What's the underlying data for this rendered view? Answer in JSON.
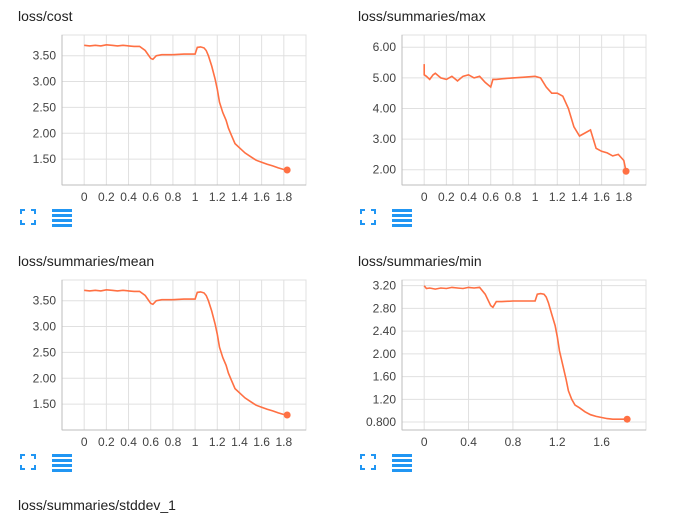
{
  "theme": {
    "line_color": "#ff7043",
    "smooth_line_color": "#ffb8a1",
    "grid_color": "#e0e0e0",
    "axis_color": "#bdbdbd",
    "icon_color": "#2196f3"
  },
  "cards": [
    {
      "title": "loss/cost",
      "fullscreen_icon": "fullscreen-icon",
      "data_icon": "list-icon"
    },
    {
      "title": "loss/summaries/max",
      "fullscreen_icon": "fullscreen-icon",
      "data_icon": "list-icon"
    },
    {
      "title": "loss/summaries/mean",
      "fullscreen_icon": "fullscreen-icon",
      "data_icon": "list-icon"
    },
    {
      "title": "loss/summaries/min",
      "fullscreen_icon": "fullscreen-icon",
      "data_icon": "list-icon"
    }
  ],
  "next_card_title": "loss/summaries/stddev_1",
  "chart_data": [
    {
      "type": "line",
      "title": "loss/cost",
      "xlabel": "",
      "ylabel": "",
      "xlim": [
        -0.2,
        2.0
      ],
      "ylim": [
        1.0,
        3.9
      ],
      "xticks": [
        0,
        0.2,
        0.4,
        0.6,
        0.8,
        1,
        1.2,
        1.4,
        1.6,
        1.8
      ],
      "xtick_labels": [
        "0",
        "0.2",
        "0.4",
        "0.6",
        "0.8",
        "1",
        "1.2",
        "1.4",
        "1.6",
        "1.8"
      ],
      "yticks": [
        1.5,
        2.0,
        2.5,
        3.0,
        3.5
      ],
      "ytick_labels": [
        "1.50",
        "2.00",
        "2.50",
        "3.00",
        "3.50"
      ],
      "grid": true,
      "series": [
        {
          "x": [
            0,
            0.05,
            0.1,
            0.15,
            0.2,
            0.25,
            0.3,
            0.35,
            0.4,
            0.45,
            0.5,
            0.55,
            0.6,
            0.62,
            0.65,
            0.7,
            0.8,
            0.9,
            1.0,
            1.02,
            1.05,
            1.08,
            1.1,
            1.12,
            1.15,
            1.18,
            1.2,
            1.22,
            1.25,
            1.28,
            1.3,
            1.33,
            1.36,
            1.4,
            1.45,
            1.5,
            1.55,
            1.6,
            1.65,
            1.7,
            1.75,
            1.8,
            1.83
          ],
          "y": [
            3.7,
            3.69,
            3.7,
            3.69,
            3.71,
            3.7,
            3.69,
            3.7,
            3.69,
            3.68,
            3.68,
            3.6,
            3.45,
            3.43,
            3.5,
            3.52,
            3.52,
            3.53,
            3.53,
            3.66,
            3.67,
            3.65,
            3.6,
            3.5,
            3.3,
            3.05,
            2.85,
            2.6,
            2.4,
            2.25,
            2.1,
            1.95,
            1.8,
            1.72,
            1.62,
            1.55,
            1.48,
            1.44,
            1.4,
            1.37,
            1.33,
            1.3,
            1.29
          ]
        }
      ]
    },
    {
      "type": "line",
      "title": "loss/summaries/max",
      "xlabel": "",
      "ylabel": "",
      "xlim": [
        -0.2,
        2.0
      ],
      "ylim": [
        1.5,
        6.4
      ],
      "xticks": [
        0,
        0.2,
        0.4,
        0.6,
        0.8,
        1,
        1.2,
        1.4,
        1.6,
        1.8
      ],
      "xtick_labels": [
        "0",
        "0.2",
        "0.4",
        "0.6",
        "0.8",
        "1",
        "1.2",
        "1.4",
        "1.6",
        "1.8"
      ],
      "yticks": [
        2.0,
        3.0,
        4.0,
        5.0,
        6.0
      ],
      "ytick_labels": [
        "2.00",
        "3.00",
        "4.00",
        "5.00",
        "6.00"
      ],
      "grid": true,
      "series": [
        {
          "x": [
            0,
            0.0,
            0.02,
            0.05,
            0.08,
            0.1,
            0.15,
            0.2,
            0.25,
            0.3,
            0.35,
            0.4,
            0.45,
            0.5,
            0.55,
            0.6,
            0.62,
            0.65,
            0.7,
            0.8,
            0.9,
            1.0,
            1.05,
            1.1,
            1.15,
            1.2,
            1.25,
            1.3,
            1.35,
            1.4,
            1.45,
            1.5,
            1.55,
            1.6,
            1.65,
            1.7,
            1.75,
            1.8,
            1.82
          ],
          "y": [
            5.45,
            5.1,
            5.05,
            4.95,
            5.1,
            5.15,
            5.0,
            4.95,
            5.05,
            4.9,
            5.05,
            5.1,
            5.0,
            5.05,
            4.85,
            4.7,
            4.95,
            4.95,
            4.97,
            5.0,
            5.02,
            5.05,
            5.0,
            4.7,
            4.5,
            4.5,
            4.4,
            4.0,
            3.4,
            3.1,
            3.2,
            3.3,
            2.7,
            2.6,
            2.55,
            2.45,
            2.5,
            2.3,
            1.95
          ]
        }
      ]
    },
    {
      "type": "line",
      "title": "loss/summaries/mean",
      "xlabel": "",
      "ylabel": "",
      "xlim": [
        -0.2,
        2.0
      ],
      "ylim": [
        1.0,
        3.9
      ],
      "xticks": [
        0,
        0.2,
        0.4,
        0.6,
        0.8,
        1,
        1.2,
        1.4,
        1.6,
        1.8
      ],
      "xtick_labels": [
        "0",
        "0.2",
        "0.4",
        "0.6",
        "0.8",
        "1",
        "1.2",
        "1.4",
        "1.6",
        "1.8"
      ],
      "yticks": [
        1.5,
        2.0,
        2.5,
        3.0,
        3.5
      ],
      "ytick_labels": [
        "1.50",
        "2.00",
        "2.50",
        "3.00",
        "3.50"
      ],
      "grid": true,
      "series": [
        {
          "x": [
            0,
            0.05,
            0.1,
            0.15,
            0.2,
            0.25,
            0.3,
            0.35,
            0.4,
            0.45,
            0.5,
            0.55,
            0.6,
            0.62,
            0.65,
            0.7,
            0.8,
            0.9,
            1.0,
            1.02,
            1.05,
            1.08,
            1.1,
            1.12,
            1.15,
            1.18,
            1.2,
            1.22,
            1.25,
            1.28,
            1.3,
            1.33,
            1.36,
            1.4,
            1.45,
            1.5,
            1.55,
            1.6,
            1.65,
            1.7,
            1.75,
            1.8,
            1.83
          ],
          "y": [
            3.7,
            3.69,
            3.7,
            3.69,
            3.71,
            3.7,
            3.69,
            3.7,
            3.69,
            3.68,
            3.68,
            3.6,
            3.45,
            3.43,
            3.5,
            3.52,
            3.52,
            3.53,
            3.53,
            3.66,
            3.67,
            3.65,
            3.6,
            3.5,
            3.3,
            3.05,
            2.85,
            2.6,
            2.4,
            2.25,
            2.1,
            1.95,
            1.8,
            1.72,
            1.62,
            1.55,
            1.48,
            1.44,
            1.4,
            1.37,
            1.33,
            1.3,
            1.29
          ]
        }
      ]
    },
    {
      "type": "line",
      "title": "loss/summaries/min",
      "xlabel": "",
      "ylabel": "",
      "xlim": [
        -0.2,
        2.0
      ],
      "ylim": [
        0.66,
        3.3
      ],
      "xticks": [
        0,
        0.4,
        0.8,
        1.2,
        1.6
      ],
      "xtick_labels": [
        "0",
        "0.4",
        "0.8",
        "1.2",
        "1.6"
      ],
      "yticks": [
        0.8,
        1.2,
        1.6,
        2.0,
        2.4,
        2.8,
        3.2
      ],
      "ytick_labels": [
        "0.800",
        "1.20",
        "1.60",
        "2.00",
        "2.40",
        "2.80",
        "3.20"
      ],
      "grid": true,
      "series": [
        {
          "x": [
            0,
            0.02,
            0.05,
            0.1,
            0.15,
            0.2,
            0.25,
            0.3,
            0.35,
            0.4,
            0.45,
            0.5,
            0.55,
            0.6,
            0.62,
            0.65,
            0.7,
            0.8,
            0.9,
            1.0,
            1.02,
            1.05,
            1.08,
            1.1,
            1.12,
            1.15,
            1.18,
            1.2,
            1.22,
            1.25,
            1.28,
            1.3,
            1.33,
            1.36,
            1.4,
            1.45,
            1.5,
            1.55,
            1.6,
            1.65,
            1.7,
            1.75,
            1.8,
            1.83
          ],
          "y": [
            3.2,
            3.15,
            3.16,
            3.14,
            3.16,
            3.15,
            3.17,
            3.16,
            3.15,
            3.17,
            3.16,
            3.17,
            3.05,
            2.85,
            2.82,
            2.92,
            2.92,
            2.93,
            2.93,
            2.93,
            3.05,
            3.06,
            3.05,
            3.0,
            2.9,
            2.7,
            2.5,
            2.3,
            2.05,
            1.8,
            1.55,
            1.35,
            1.2,
            1.1,
            1.05,
            0.98,
            0.93,
            0.9,
            0.88,
            0.86,
            0.85,
            0.85,
            0.85,
            0.85
          ]
        }
      ]
    }
  ]
}
